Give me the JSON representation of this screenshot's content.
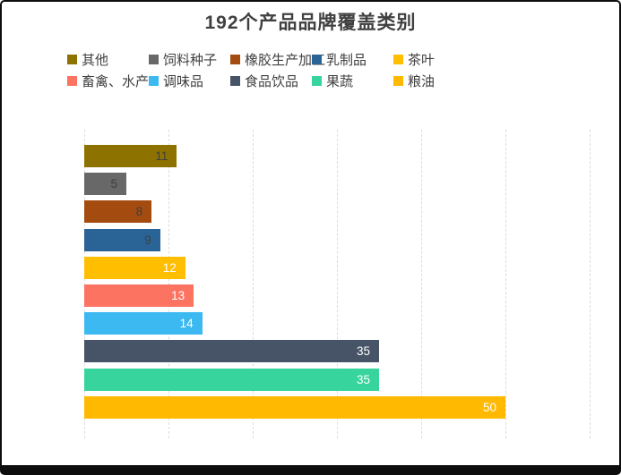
{
  "title": "192个产品品牌覆盖类别",
  "chart_data": {
    "type": "bar",
    "orientation": "horizontal",
    "title": "192个产品品牌覆盖类别",
    "categories": [
      "其他",
      "饲料种子",
      "橡胶生产加工",
      "乳制品",
      "茶叶",
      "畜禽、水产",
      "调味品",
      "食品饮品",
      "果蔬",
      "粮油"
    ],
    "values": [
      11,
      5,
      8,
      9,
      12,
      13,
      14,
      35,
      35,
      50
    ],
    "bar_colors": [
      "#8E7200",
      "#686868",
      "#A44B0F",
      "#2A6496",
      "#FFBE00",
      "#FC7362",
      "#3CB9F1",
      "#475366",
      "#38D49E",
      "#FFB900"
    ],
    "value_label_colors": [
      "#3F3F3F",
      "#3F3F3F",
      "#3F3F3F",
      "#3F3F3F",
      "#FFFFFF",
      "#FFFFFF",
      "#FFFFFF",
      "#FFFFFF",
      "#FFFFFF",
      "#FFFFFF"
    ],
    "total": 192,
    "xlim": [
      0,
      60
    ],
    "grid_interval": 10,
    "grid": true,
    "grid_style": "dashed",
    "gridline_color": "#DCDCDC",
    "legend_position": "top",
    "legend_rows": [
      [
        "其他",
        "饲料种子",
        "橡胶生产加工",
        "乳制品",
        "茶叶"
      ],
      [
        "畜禽、水产",
        "调味品",
        "食品饮品",
        "果蔬",
        "粮油"
      ]
    ],
    "title_color": "#404040",
    "legend_text_color": "#404040"
  }
}
